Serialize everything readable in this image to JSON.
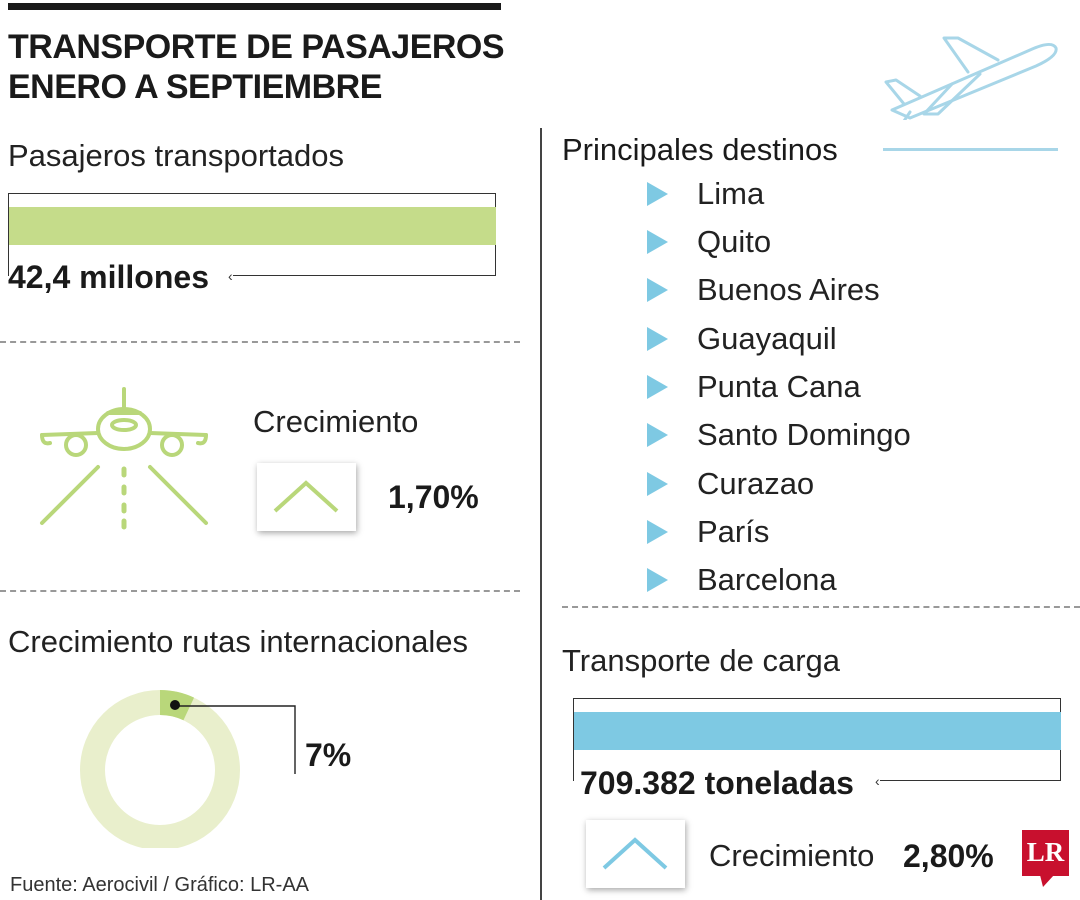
{
  "title": "TRANSPORTE DE PASAJEROS\nENERO A SEPTIEMBRE",
  "passengers": {
    "label": "Pasajeros transportados",
    "value_text": "42,4 millones",
    "bar_color": "#c5dc8a"
  },
  "growth": {
    "label": "Crecimiento",
    "value_text": "1,70%",
    "icon": "up-chevron-icon",
    "icon_color": "#b9d77a"
  },
  "intl_routes": {
    "label": "Crecimiento rutas internacionales",
    "value_text": "7%",
    "value": 7,
    "ring_color": "#e9efcc",
    "slice_color": "#b9d77a"
  },
  "destinations": {
    "title": "Principales destinos",
    "items": [
      "Lima",
      "Quito",
      "Buenos Aires",
      "Guayaquil",
      "Punta Cana",
      "Santo Domingo",
      "Curazao",
      "París",
      "Barcelona"
    ],
    "marker_color": "#7ec9e3"
  },
  "cargo": {
    "label": "Transporte de carga",
    "value_text": "709.382 toneladas",
    "bar_color": "#7ec9e3",
    "growth_label": "Crecimiento",
    "growth_value": "2,80%",
    "icon_color": "#7ec9e3"
  },
  "source": "Fuente: Aerocivil / Gráfico: LR-AA",
  "logo": {
    "text": "LR",
    "color": "#c8102e"
  },
  "chart_data": [
    {
      "type": "bar",
      "title": "Pasajeros transportados",
      "categories": [
        "Pasajeros transportados"
      ],
      "values": [
        42.4
      ],
      "unit": "millones"
    },
    {
      "type": "pie",
      "title": "Crecimiento rutas internacionales",
      "categories": [
        "Crecimiento"
      ],
      "values": [
        7
      ],
      "unit": "%"
    },
    {
      "type": "bar",
      "title": "Transporte de carga",
      "categories": [
        "Transporte de carga"
      ],
      "values": [
        709382
      ],
      "unit": "toneladas"
    }
  ]
}
